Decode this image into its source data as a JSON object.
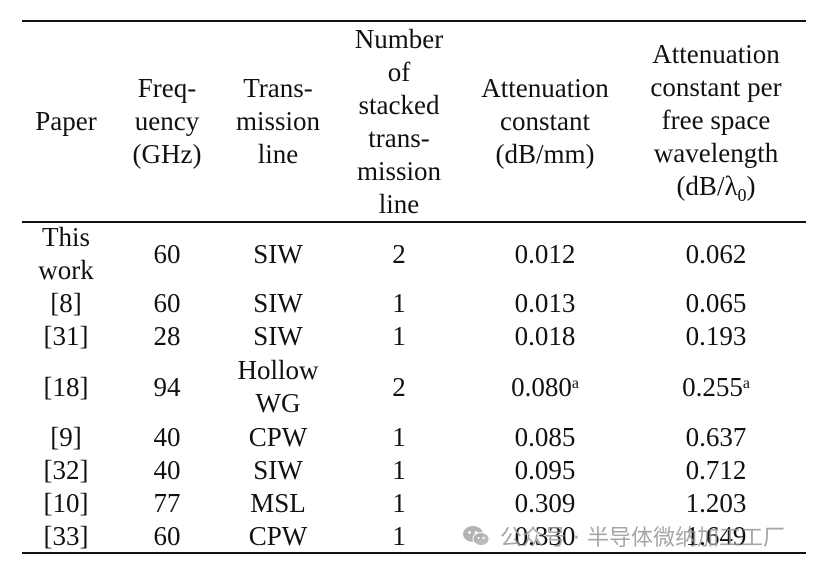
{
  "table": {
    "headers": [
      [
        "Paper"
      ],
      [
        "Freq-",
        "uency",
        "(GHz)"
      ],
      [
        "Trans-",
        "mission",
        "line"
      ],
      [
        "Number",
        "of",
        "stacked",
        "trans-",
        "mission",
        "line"
      ],
      [
        "Attenuation",
        "constant",
        "(dB/mm)"
      ],
      [
        "Attenuation",
        "constant per",
        "free space",
        "wavelength"
      ]
    ],
    "last_header_unit": {
      "open": "(dB/",
      "lambda": "λ",
      "sub": "0",
      "close": ")"
    },
    "rows": [
      {
        "paper": [
          "This",
          "work"
        ],
        "freq": "60",
        "line": [
          "SIW"
        ],
        "stacked": "2",
        "atten": "0.012",
        "atten_sup": "",
        "per_wl": "0.062",
        "per_wl_sup": ""
      },
      {
        "paper": [
          "[8]"
        ],
        "freq": "60",
        "line": [
          "SIW"
        ],
        "stacked": "1",
        "atten": "0.013",
        "atten_sup": "",
        "per_wl": "0.065",
        "per_wl_sup": ""
      },
      {
        "paper": [
          "[31]"
        ],
        "freq": "28",
        "line": [
          "SIW"
        ],
        "stacked": "1",
        "atten": "0.018",
        "atten_sup": "",
        "per_wl": "0.193",
        "per_wl_sup": ""
      },
      {
        "paper": [
          "[18]"
        ],
        "freq": "94",
        "line": [
          "Hollow",
          "WG"
        ],
        "stacked": "2",
        "atten": "0.080",
        "atten_sup": "a",
        "per_wl": "0.255",
        "per_wl_sup": "a"
      },
      {
        "paper": [
          "[9]"
        ],
        "freq": "40",
        "line": [
          "CPW"
        ],
        "stacked": "1",
        "atten": "0.085",
        "atten_sup": "",
        "per_wl": "0.637",
        "per_wl_sup": ""
      },
      {
        "paper": [
          "[32]"
        ],
        "freq": "40",
        "line": [
          "SIW"
        ],
        "stacked": "1",
        "atten": "0.095",
        "atten_sup": "",
        "per_wl": "0.712",
        "per_wl_sup": ""
      },
      {
        "paper": [
          "[10]"
        ],
        "freq": "77",
        "line": [
          "MSL"
        ],
        "stacked": "1",
        "atten": "0.309",
        "atten_sup": "",
        "per_wl": "1.203",
        "per_wl_sup": ""
      },
      {
        "paper": [
          "[33]"
        ],
        "freq": "60",
        "line": [
          "CPW"
        ],
        "stacked": "1",
        "atten": "0.330",
        "atten_sup": "",
        "per_wl": "1.649",
        "per_wl_sup": ""
      }
    ]
  },
  "watermark": {
    "text": "公众号 · 半导体微纳加工工厂",
    "icon": "wechat-icon"
  }
}
